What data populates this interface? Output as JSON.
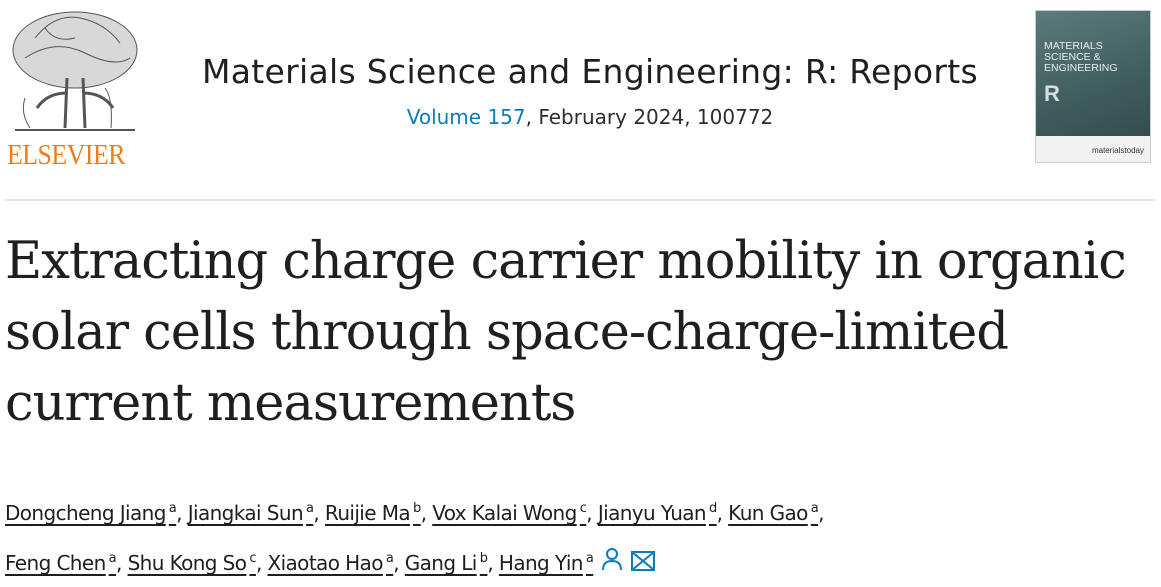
{
  "publisher": {
    "logo_text": "ELSEVIER",
    "logo_color": "#f07c18"
  },
  "journal": {
    "title": "Materials Science and Engineering: R: Reports",
    "volume_link": "Volume 157",
    "issue_info": ", February 2024, 100772",
    "cover_title": "MATERIALS SCIENCE & ENGINEERING",
    "cover_letter": "R",
    "cover_brand": "materialstoday"
  },
  "article": {
    "title": "Extracting charge carrier mobility in organic solar cells through space-charge-limited current measurements"
  },
  "authors": [
    {
      "name": "Dongcheng Jiang",
      "aff": "a"
    },
    {
      "name": "Jiangkai Sun",
      "aff": "a"
    },
    {
      "name": "Ruijie Ma",
      "aff": "b"
    },
    {
      "name": "Vox Kalai Wong",
      "aff": "c"
    },
    {
      "name": "Jianyu Yuan",
      "aff": "d"
    },
    {
      "name": "Kun Gao",
      "aff": "a"
    },
    {
      "name": "Feng Chen",
      "aff": "a"
    },
    {
      "name": "Shu Kong So",
      "aff": "c"
    },
    {
      "name": "Xiaotao Hao",
      "aff": "a"
    },
    {
      "name": "Gang Li",
      "aff": "b"
    },
    {
      "name": "Hang Yin",
      "aff": "a",
      "icons": [
        "person-icon",
        "mail-icon"
      ]
    }
  ],
  "colors": {
    "link": "#0c7dbb"
  }
}
